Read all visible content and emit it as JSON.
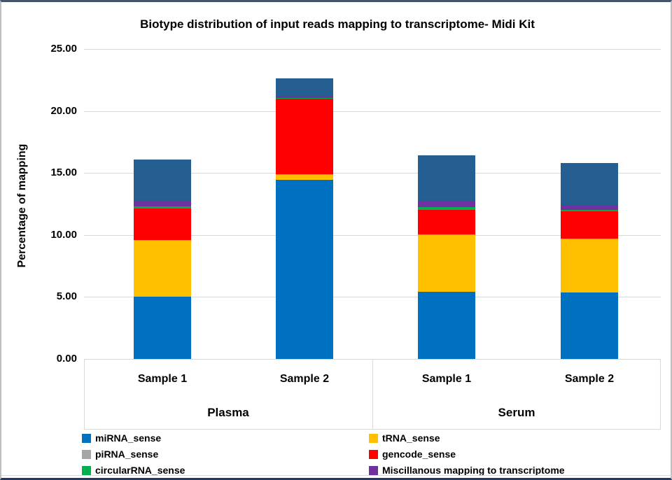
{
  "title": "Biotype distribution of input reads mapping to transcriptome- Midi Kit",
  "y_axis": {
    "title": "Percentage of mapping",
    "ticks": [
      {
        "label": "0.00",
        "value": 0
      },
      {
        "label": "5.00",
        "value": 5
      },
      {
        "label": "10.00",
        "value": 10
      },
      {
        "label": "15.00",
        "value": 15
      },
      {
        "label": "20.00",
        "value": 20
      },
      {
        "label": "25.00",
        "value": 25
      }
    ]
  },
  "x_axis": {
    "groups": [
      {
        "label": "Plasma",
        "samples": [
          "Sample 1",
          "Sample 2"
        ]
      },
      {
        "label": "Serum",
        "samples": [
          "Sample 1",
          "Sample 2"
        ]
      }
    ]
  },
  "legend": {
    "columns": [
      [
        {
          "label": "miRNA_sense",
          "color": "#0070C0"
        },
        {
          "label": "piRNA_sense",
          "color": "#A6A6A6"
        },
        {
          "label": "circularRNA_sense",
          "color": "#00B050"
        }
      ],
      [
        {
          "label": "tRNA_sense",
          "color": "#FFC000"
        },
        {
          "label": "gencode_sense",
          "color": "#FF0000"
        },
        {
          "label": "Miscillanous mapping to transcriptome",
          "color": "#7030A0"
        }
      ]
    ]
  },
  "chart_data": {
    "type": "bar",
    "stacked": true,
    "title": "Biotype distribution of input reads mapping to transcriptome- Midi Kit",
    "xlabel": "",
    "ylabel": "Percentage of mapping",
    "ylim": [
      0,
      25
    ],
    "grid": true,
    "legend_position": "bottom",
    "group_labels": [
      "Plasma",
      "Plasma",
      "Serum",
      "Serum"
    ],
    "categories": [
      "Sample 1",
      "Sample 2",
      "Sample 1",
      "Sample 2"
    ],
    "series": [
      {
        "name": "miRNA_sense",
        "color": "#0070C0",
        "values": [
          5.05,
          14.43,
          5.4,
          5.35
        ]
      },
      {
        "name": "tRNA_sense",
        "color": "#FFC000",
        "values": [
          4.5,
          0.45,
          4.6,
          4.3
        ]
      },
      {
        "name": "piRNA_sense",
        "color": "#A6A6A6",
        "values": [
          0.03,
          0.02,
          0.03,
          0.03
        ]
      },
      {
        "name": "gencode_sense",
        "color": "#FF0000",
        "values": [
          2.55,
          6.1,
          2.0,
          2.2
        ]
      },
      {
        "name": "circularRNA_sense",
        "color": "#00B050",
        "values": [
          0.2,
          0.03,
          0.2,
          0.15
        ]
      },
      {
        "name": "Miscillanous mapping to transcriptome",
        "color": "#7030A0",
        "values": [
          0.4,
          0.2,
          0.5,
          0.4
        ]
      },
      {
        "name": "unlabeled_top_segment",
        "color": "#255E91",
        "values": [
          3.35,
          1.4,
          3.7,
          3.35
        ],
        "in_legend": false
      }
    ],
    "bar_totals": [
      16.08,
      22.63,
      16.43,
      15.78
    ]
  }
}
